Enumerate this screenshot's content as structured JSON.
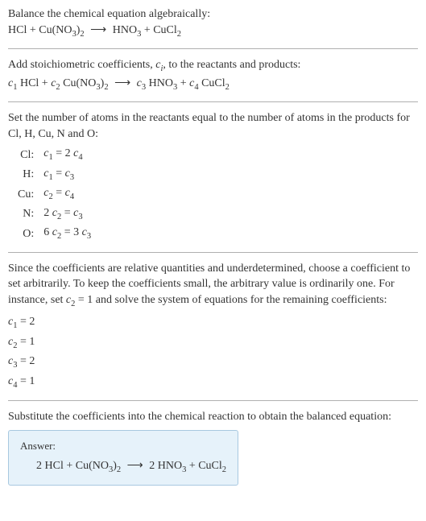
{
  "colors": {
    "text": "#333",
    "divider": "#b0b0b0",
    "answer_bg": "#e6f2fa",
    "answer_border": "#a8c8e0"
  },
  "fontsize": 14,
  "sections": {
    "balance": {
      "title": "Balance the chemical equation algebraically:",
      "equation": "HCl + Cu(NO₃)₂  ⟶  HNO₃ + CuCl₂"
    },
    "stoich": {
      "title_pre": "Add stoichiometric coefficients, ",
      "title_var": "c",
      "title_sub": "i",
      "title_post": ", to the reactants and products:",
      "equation_html": "<i>c</i><sub>1</sub> HCl + <i>c</i><sub>2</sub> Cu(NO<sub>3</sub>)<sub>2</sub>  <span class='arrow'>⟶</span>  <i>c</i><sub>3</sub> HNO<sub>3</sub> + <i>c</i><sub>4</sub> CuCl<sub>2</sub>"
    },
    "atoms": {
      "title": "Set the number of atoms in the reactants equal to the number of atoms in the products for Cl, H, Cu, N and O:",
      "rows": [
        {
          "el": "Cl:",
          "eq_html": "<i>c</i><sub>1</sub> = 2 <i>c</i><sub>4</sub>"
        },
        {
          "el": "H:",
          "eq_html": "<i>c</i><sub>1</sub> = <i>c</i><sub>3</sub>"
        },
        {
          "el": "Cu:",
          "eq_html": "<i>c</i><sub>2</sub> = <i>c</i><sub>4</sub>"
        },
        {
          "el": "N:",
          "eq_html": "2 <i>c</i><sub>2</sub> = <i>c</i><sub>3</sub>"
        },
        {
          "el": "O:",
          "eq_html": "6 <i>c</i><sub>2</sub> = 3 <i>c</i><sub>3</sub>"
        }
      ]
    },
    "solve": {
      "text_html": "Since the coefficients are relative quantities and underdetermined, choose a coefficient to set arbitrarily. To keep the coefficients small, the arbitrary value is ordinarily one. For instance, set <i>c</i><sub>2</sub> = 1 and solve the system of equations for the remaining coefficients:",
      "coeffs": [
        "<i>c</i><sub>1</sub> = 2",
        "<i>c</i><sub>2</sub> = 1",
        "<i>c</i><sub>3</sub> = 2",
        "<i>c</i><sub>4</sub> = 1"
      ]
    },
    "subst": {
      "title": "Substitute the coefficients into the chemical reaction to obtain the balanced equation:"
    },
    "answer": {
      "label": "Answer:",
      "eq_html": "2 HCl + Cu(NO<sub>3</sub>)<sub>2</sub>  <span class='arrow'>⟶</span>  2 HNO<sub>3</sub> + CuCl<sub>2</sub>"
    }
  }
}
